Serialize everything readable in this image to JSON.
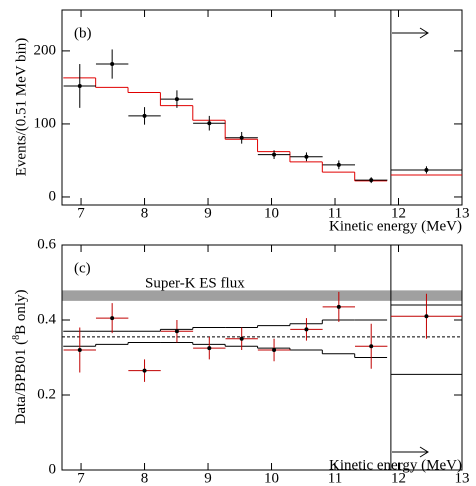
{
  "chart_data": [
    {
      "type": "errorbar",
      "panel_label": "(b)",
      "ylabel": "Events/(0.51 MeV bin)",
      "xlabel": "Kinetic energy (MeV)",
      "xlim": [
        6.7,
        13
      ],
      "xticks": [
        7,
        8,
        9,
        10,
        11,
        12,
        13
      ],
      "ylim": [
        -11,
        256
      ],
      "yticks": [
        0,
        100,
        200
      ],
      "divider": 11.88,
      "points": {
        "color": "#000000",
        "errcolor": "#000000",
        "x": [
          6.98,
          7.49,
          8.0,
          8.51,
          9.02,
          9.53,
          10.04,
          10.55,
          11.06,
          11.57,
          12.44
        ],
        "xerr": [
          0.255,
          0.255,
          0.255,
          0.255,
          0.255,
          0.255,
          0.255,
          0.255,
          0.255,
          0.255,
          0.56
        ],
        "values": [
          152,
          182,
          111,
          134,
          101,
          81,
          58,
          55,
          44,
          23,
          37
        ],
        "yerr": [
          30,
          20,
          12,
          12,
          10,
          8,
          6,
          6,
          6,
          4,
          5
        ]
      },
      "model": [
        {
          "color": "#e00000",
          "bins": [
            6.72,
            7.23,
            7.74,
            8.25,
            8.76,
            9.27,
            9.78,
            10.29,
            10.8,
            11.31,
            11.82,
            11.88,
            13
          ],
          "values": [
            163,
            150,
            143,
            125,
            105,
            79,
            62,
            48,
            34,
            22,
            null,
            30
          ]
        }
      ]
    },
    {
      "type": "errorbar",
      "panel_label": "(c)",
      "ylabel": [
        "Data/BPB01 (",
        "8",
        "B only)"
      ],
      "xlabel": "Kinetic energy (MeV)",
      "xlim": [
        6.7,
        13
      ],
      "xticks": [
        7,
        8,
        9,
        10,
        11,
        12,
        13
      ],
      "ylim": [
        0,
        0.6
      ],
      "yticks": [
        {
          "value": 0,
          "label": "0"
        },
        0.2,
        0.4,
        0.6
      ],
      "divider": 11.88,
      "band": {
        "label": "Super-K ES flux",
        "range": [
          0.451,
          0.479
        ],
        "color": "#a0a0a0"
      },
      "dashed": 0.355,
      "points": {
        "color": "#000000",
        "errcolor": "#c00000",
        "x": [
          6.98,
          7.49,
          8.0,
          8.51,
          9.02,
          9.53,
          10.04,
          10.55,
          11.06,
          11.57,
          12.44
        ],
        "xerr": [
          0.255,
          0.255,
          0.255,
          0.255,
          0.255,
          0.255,
          0.255,
          0.255,
          0.255,
          0.255,
          0.56
        ],
        "values": [
          0.32,
          0.405,
          0.265,
          0.37,
          0.325,
          0.35,
          0.32,
          0.375,
          0.435,
          0.33,
          0.41
        ],
        "yerr": [
          0.06,
          0.04,
          0.03,
          0.03,
          0.03,
          0.03,
          0.03,
          0.03,
          0.04,
          0.06,
          0.06
        ]
      },
      "model": [
        {
          "color": "#000000",
          "bins": [
            6.72,
            7.23,
            7.74,
            8.25,
            8.76,
            9.27,
            9.78,
            10.29,
            10.8,
            11.31,
            11.82,
            11.88,
            13
          ],
          "values": [
            0.37,
            0.37,
            0.37,
            0.375,
            0.38,
            0.38,
            0.385,
            0.39,
            0.4,
            0.4,
            null,
            0.44
          ]
        },
        {
          "color": "#000000",
          "bins": [
            6.72,
            7.23,
            7.74,
            8.25,
            8.76,
            9.27,
            9.78,
            10.29,
            10.8,
            11.31,
            11.82,
            11.88,
            13
          ],
          "values": [
            0.33,
            0.335,
            0.34,
            0.34,
            0.335,
            0.33,
            0.325,
            0.32,
            0.31,
            0.3,
            null,
            0.255
          ]
        }
      ]
    }
  ]
}
